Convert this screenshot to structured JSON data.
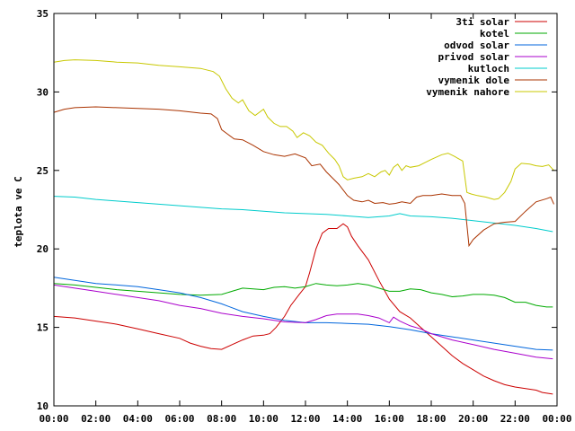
{
  "chart_data": {
    "type": "line",
    "title": "",
    "xlabel": "",
    "ylabel": "teplota ve C",
    "xlim": [
      0,
      24
    ],
    "ylim": [
      10,
      35
    ],
    "x_ticks": [
      "00:00",
      "02:00",
      "04:00",
      "06:00",
      "08:00",
      "10:00",
      "12:00",
      "14:00",
      "16:00",
      "18:00",
      "20:00",
      "22:00",
      "00:00"
    ],
    "y_ticks": [
      10,
      15,
      20,
      25,
      30,
      35
    ],
    "grid": false,
    "legend_position": "top-right",
    "series": [
      {
        "name": "3ti solar",
        "color": "#cc0000",
        "points": [
          [
            0,
            15.7
          ],
          [
            1,
            15.6
          ],
          [
            2,
            15.4
          ],
          [
            3,
            15.2
          ],
          [
            4,
            14.9
          ],
          [
            5,
            14.6
          ],
          [
            6,
            14.3
          ],
          [
            6.5,
            14.0
          ],
          [
            7,
            13.8
          ],
          [
            7.5,
            13.65
          ],
          [
            8,
            13.6
          ],
          [
            8.5,
            13.9
          ],
          [
            9,
            14.2
          ],
          [
            9.5,
            14.45
          ],
          [
            10,
            14.5
          ],
          [
            10.3,
            14.6
          ],
          [
            10.6,
            15.0
          ],
          [
            11,
            15.7
          ],
          [
            11.3,
            16.4
          ],
          [
            11.7,
            17.1
          ],
          [
            12,
            17.6
          ],
          [
            12.2,
            18.5
          ],
          [
            12.5,
            20.0
          ],
          [
            12.8,
            21.0
          ],
          [
            13.1,
            21.3
          ],
          [
            13.5,
            21.3
          ],
          [
            13.8,
            21.6
          ],
          [
            14.0,
            21.4
          ],
          [
            14.2,
            20.8
          ],
          [
            14.5,
            20.2
          ],
          [
            15,
            19.3
          ],
          [
            15.5,
            18.0
          ],
          [
            16,
            16.8
          ],
          [
            16.5,
            16.0
          ],
          [
            17,
            15.6
          ],
          [
            17.5,
            15.0
          ],
          [
            18,
            14.4
          ],
          [
            18.5,
            13.8
          ],
          [
            19,
            13.2
          ],
          [
            19.5,
            12.7
          ],
          [
            20,
            12.3
          ],
          [
            20.5,
            11.9
          ],
          [
            21,
            11.6
          ],
          [
            21.5,
            11.35
          ],
          [
            22,
            11.2
          ],
          [
            22.5,
            11.1
          ],
          [
            23,
            11.0
          ],
          [
            23.3,
            10.85
          ],
          [
            23.8,
            10.75
          ]
        ]
      },
      {
        "name": "kotel",
        "color": "#00aa00",
        "points": [
          [
            0,
            17.8
          ],
          [
            1,
            17.7
          ],
          [
            2,
            17.55
          ],
          [
            3,
            17.4
          ],
          [
            4,
            17.3
          ],
          [
            5,
            17.2
          ],
          [
            6,
            17.1
          ],
          [
            7,
            17.05
          ],
          [
            8,
            17.1
          ],
          [
            8.5,
            17.3
          ],
          [
            9,
            17.5
          ],
          [
            9.5,
            17.45
          ],
          [
            10,
            17.4
          ],
          [
            10.5,
            17.55
          ],
          [
            11,
            17.6
          ],
          [
            11.5,
            17.5
          ],
          [
            12,
            17.6
          ],
          [
            12.5,
            17.8
          ],
          [
            13,
            17.7
          ],
          [
            13.5,
            17.65
          ],
          [
            14,
            17.7
          ],
          [
            14.5,
            17.8
          ],
          [
            15,
            17.7
          ],
          [
            15.5,
            17.5
          ],
          [
            16,
            17.3
          ],
          [
            16.5,
            17.3
          ],
          [
            17,
            17.45
          ],
          [
            17.5,
            17.4
          ],
          [
            18,
            17.2
          ],
          [
            18.5,
            17.1
          ],
          [
            19,
            16.95
          ],
          [
            19.5,
            17.0
          ],
          [
            20,
            17.1
          ],
          [
            20.5,
            17.1
          ],
          [
            21,
            17.05
          ],
          [
            21.5,
            16.9
          ],
          [
            22,
            16.6
          ],
          [
            22.5,
            16.6
          ],
          [
            23,
            16.4
          ],
          [
            23.5,
            16.3
          ],
          [
            23.8,
            16.3
          ]
        ]
      },
      {
        "name": "odvod solar",
        "color": "#0066dd",
        "points": [
          [
            0,
            18.2
          ],
          [
            1,
            18.0
          ],
          [
            2,
            17.8
          ],
          [
            3,
            17.7
          ],
          [
            4,
            17.6
          ],
          [
            5,
            17.4
          ],
          [
            6,
            17.2
          ],
          [
            7,
            16.9
          ],
          [
            8,
            16.5
          ],
          [
            9,
            16.0
          ],
          [
            10,
            15.7
          ],
          [
            11,
            15.45
          ],
          [
            12,
            15.3
          ],
          [
            13,
            15.3
          ],
          [
            14,
            15.25
          ],
          [
            15,
            15.2
          ],
          [
            16,
            15.05
          ],
          [
            17,
            14.85
          ],
          [
            18,
            14.6
          ],
          [
            19,
            14.4
          ],
          [
            20,
            14.2
          ],
          [
            21,
            14.0
          ],
          [
            22,
            13.8
          ],
          [
            23,
            13.6
          ],
          [
            23.8,
            13.55
          ]
        ]
      },
      {
        "name": "privod solar",
        "color": "#aa00cc",
        "points": [
          [
            0,
            17.7
          ],
          [
            1,
            17.5
          ],
          [
            2,
            17.3
          ],
          [
            3,
            17.1
          ],
          [
            4,
            16.9
          ],
          [
            5,
            16.7
          ],
          [
            6,
            16.4
          ],
          [
            7,
            16.2
          ],
          [
            8,
            15.9
          ],
          [
            9,
            15.7
          ],
          [
            10,
            15.55
          ],
          [
            11,
            15.35
          ],
          [
            12,
            15.3
          ],
          [
            12.5,
            15.5
          ],
          [
            13,
            15.75
          ],
          [
            13.5,
            15.85
          ],
          [
            14,
            15.85
          ],
          [
            14.5,
            15.85
          ],
          [
            15,
            15.75
          ],
          [
            15.5,
            15.6
          ],
          [
            16,
            15.3
          ],
          [
            16.2,
            15.65
          ],
          [
            16.5,
            15.4
          ],
          [
            17,
            15.1
          ],
          [
            17.5,
            14.9
          ],
          [
            18,
            14.6
          ],
          [
            18.5,
            14.4
          ],
          [
            19,
            14.2
          ],
          [
            20,
            13.9
          ],
          [
            21,
            13.6
          ],
          [
            22,
            13.35
          ],
          [
            23,
            13.1
          ],
          [
            23.8,
            13.0
          ]
        ]
      },
      {
        "name": "kutloch",
        "color": "#00cccc",
        "points": [
          [
            0,
            23.35
          ],
          [
            1,
            23.3
          ],
          [
            2,
            23.15
          ],
          [
            3,
            23.05
          ],
          [
            4,
            22.95
          ],
          [
            5,
            22.85
          ],
          [
            6,
            22.75
          ],
          [
            7,
            22.65
          ],
          [
            8,
            22.55
          ],
          [
            9,
            22.5
          ],
          [
            10,
            22.4
          ],
          [
            11,
            22.3
          ],
          [
            12,
            22.25
          ],
          [
            13,
            22.2
          ],
          [
            14,
            22.1
          ],
          [
            15,
            22.0
          ],
          [
            16,
            22.1
          ],
          [
            16.5,
            22.25
          ],
          [
            17,
            22.1
          ],
          [
            18,
            22.05
          ],
          [
            19,
            21.95
          ],
          [
            20,
            21.8
          ],
          [
            21,
            21.65
          ],
          [
            22,
            21.5
          ],
          [
            23,
            21.3
          ],
          [
            23.8,
            21.1
          ]
        ]
      },
      {
        "name": "vymenik dole",
        "color": "#aa3300",
        "points": [
          [
            0,
            28.7
          ],
          [
            0.5,
            28.9
          ],
          [
            1,
            29.0
          ],
          [
            2,
            29.05
          ],
          [
            3,
            29.0
          ],
          [
            4,
            28.95
          ],
          [
            5,
            28.9
          ],
          [
            6,
            28.8
          ],
          [
            7,
            28.65
          ],
          [
            7.5,
            28.6
          ],
          [
            7.8,
            28.3
          ],
          [
            8,
            27.6
          ],
          [
            8.3,
            27.3
          ],
          [
            8.6,
            27.0
          ],
          [
            9,
            26.95
          ],
          [
            9.5,
            26.6
          ],
          [
            10,
            26.2
          ],
          [
            10.5,
            26.0
          ],
          [
            11,
            25.9
          ],
          [
            11.5,
            26.05
          ],
          [
            12,
            25.8
          ],
          [
            12.3,
            25.3
          ],
          [
            12.7,
            25.4
          ],
          [
            13,
            24.9
          ],
          [
            13.3,
            24.5
          ],
          [
            13.6,
            24.1
          ],
          [
            14,
            23.4
          ],
          [
            14.3,
            23.1
          ],
          [
            14.7,
            23.0
          ],
          [
            15,
            23.1
          ],
          [
            15.3,
            22.9
          ],
          [
            15.7,
            22.95
          ],
          [
            16,
            22.85
          ],
          [
            16.3,
            22.9
          ],
          [
            16.6,
            23.0
          ],
          [
            17,
            22.9
          ],
          [
            17.3,
            23.3
          ],
          [
            17.6,
            23.4
          ],
          [
            18,
            23.4
          ],
          [
            18.5,
            23.5
          ],
          [
            19,
            23.4
          ],
          [
            19.4,
            23.4
          ],
          [
            19.6,
            22.9
          ],
          [
            19.8,
            20.2
          ],
          [
            20,
            20.6
          ],
          [
            20.5,
            21.2
          ],
          [
            21,
            21.6
          ],
          [
            21.5,
            21.7
          ],
          [
            22,
            21.75
          ],
          [
            22.5,
            22.4
          ],
          [
            23,
            23.0
          ],
          [
            23.5,
            23.2
          ],
          [
            23.7,
            23.3
          ],
          [
            23.85,
            22.85
          ]
        ]
      },
      {
        "name": "vymenik nahore",
        "color": "#c8c800",
        "points": [
          [
            0,
            31.9
          ],
          [
            0.5,
            32.0
          ],
          [
            1,
            32.05
          ],
          [
            2,
            32.0
          ],
          [
            3,
            31.9
          ],
          [
            4,
            31.85
          ],
          [
            5,
            31.7
          ],
          [
            6,
            31.6
          ],
          [
            7,
            31.5
          ],
          [
            7.6,
            31.3
          ],
          [
            7.9,
            31.0
          ],
          [
            8.2,
            30.2
          ],
          [
            8.5,
            29.6
          ],
          [
            8.8,
            29.3
          ],
          [
            9,
            29.5
          ],
          [
            9.3,
            28.8
          ],
          [
            9.6,
            28.5
          ],
          [
            10,
            28.9
          ],
          [
            10.2,
            28.4
          ],
          [
            10.5,
            28.0
          ],
          [
            10.8,
            27.8
          ],
          [
            11.1,
            27.8
          ],
          [
            11.4,
            27.5
          ],
          [
            11.6,
            27.1
          ],
          [
            11.9,
            27.4
          ],
          [
            12.2,
            27.2
          ],
          [
            12.5,
            26.8
          ],
          [
            12.8,
            26.6
          ],
          [
            13.1,
            26.1
          ],
          [
            13.4,
            25.7
          ],
          [
            13.6,
            25.3
          ],
          [
            13.8,
            24.6
          ],
          [
            14,
            24.4
          ],
          [
            14.3,
            24.5
          ],
          [
            14.7,
            24.6
          ],
          [
            15,
            24.8
          ],
          [
            15.3,
            24.6
          ],
          [
            15.6,
            24.9
          ],
          [
            15.8,
            25.0
          ],
          [
            16,
            24.7
          ],
          [
            16.2,
            25.2
          ],
          [
            16.4,
            25.4
          ],
          [
            16.6,
            25.0
          ],
          [
            16.8,
            25.3
          ],
          [
            17,
            25.2
          ],
          [
            17.4,
            25.3
          ],
          [
            17.7,
            25.5
          ],
          [
            18,
            25.7
          ],
          [
            18.5,
            26.0
          ],
          [
            18.8,
            26.1
          ],
          [
            19.1,
            25.9
          ],
          [
            19.5,
            25.6
          ],
          [
            19.7,
            23.6
          ],
          [
            19.9,
            23.5
          ],
          [
            20.2,
            23.4
          ],
          [
            20.6,
            23.3
          ],
          [
            21,
            23.15
          ],
          [
            21.2,
            23.2
          ],
          [
            21.5,
            23.6
          ],
          [
            21.8,
            24.3
          ],
          [
            22,
            25.1
          ],
          [
            22.3,
            25.45
          ],
          [
            22.7,
            25.4
          ],
          [
            23,
            25.3
          ],
          [
            23.3,
            25.25
          ],
          [
            23.6,
            25.35
          ],
          [
            23.85,
            25.0
          ]
        ]
      }
    ]
  }
}
